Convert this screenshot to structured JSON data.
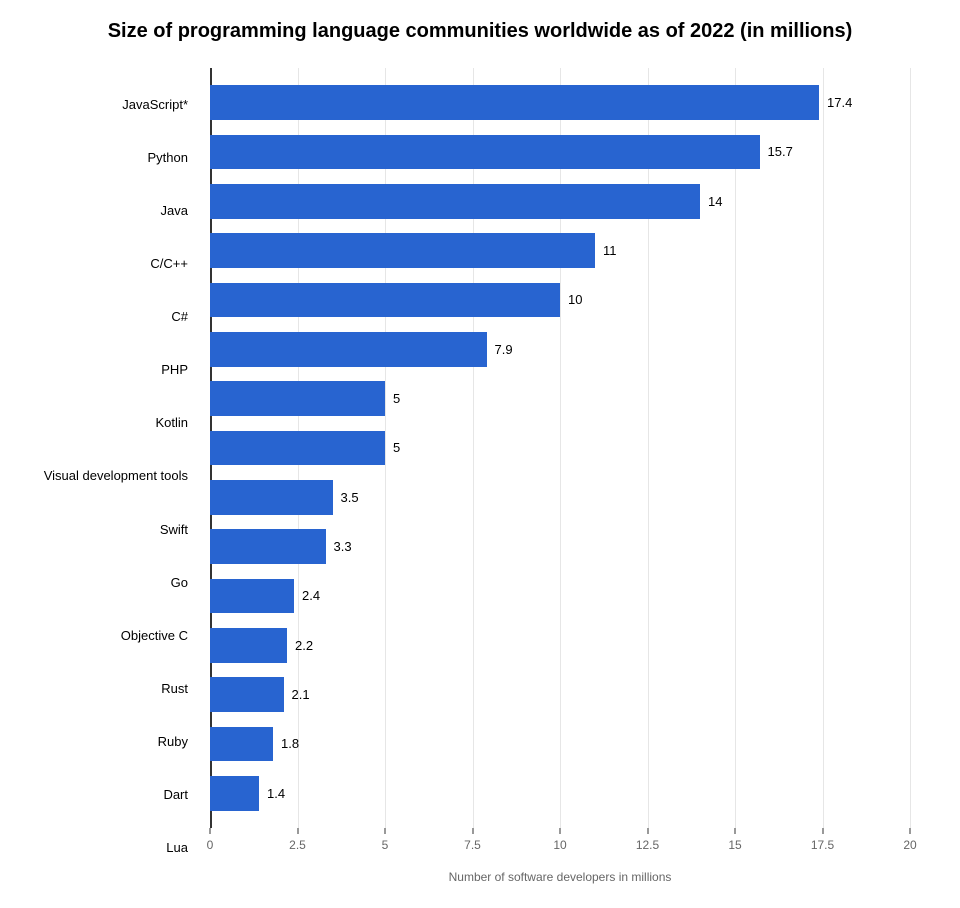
{
  "chart": {
    "type": "horizontal-bar",
    "title": "Size of programming language communities worldwide as of 2022 (in millions)",
    "title_fontsize": 20,
    "title_color": "#000000",
    "background_color": "#ffffff",
    "xlabel": "Number of software developers in millions",
    "xlabel_fontsize": 12,
    "xlabel_color": "#666666",
    "xlim": [
      0,
      20
    ],
    "xtick_step": 2.5,
    "xticks": [
      0,
      2.5,
      5,
      7.5,
      10,
      12.5,
      15,
      17.5,
      20
    ],
    "xtick_labels": [
      "0",
      "2.5",
      "5",
      "7.5",
      "10",
      "12.5",
      "15",
      "17.5",
      "20"
    ],
    "grid_color": "#e6e6e6",
    "axis_line_color": "#333333",
    "tick_label_fontsize": 12,
    "tick_label_color": "#666666",
    "y_label_fontsize": 13,
    "y_label_color": "#000000",
    "bar_color": "#2864d0",
    "value_label_fontsize": 13,
    "value_label_color": "#000000",
    "bar_height_ratio": 0.7,
    "categories": [
      "JavaScript*",
      "Python",
      "Java",
      "C/C++",
      "C#",
      "PHP",
      "Kotlin",
      "Visual development tools",
      "Swift",
      "Go",
      "Objective C",
      "Rust",
      "Ruby",
      "Dart",
      "Lua"
    ],
    "values": [
      17.4,
      15.7,
      14,
      11,
      10,
      7.9,
      5,
      5,
      3.5,
      3.3,
      2.4,
      2.2,
      2.1,
      1.8,
      1.4
    ],
    "value_labels": [
      "17.4",
      "15.7",
      "14",
      "11",
      "10",
      "7.9",
      "5",
      "5",
      "3.5",
      "3.3",
      "2.4",
      "2.2",
      "2.1",
      "1.8",
      "1.4"
    ]
  }
}
